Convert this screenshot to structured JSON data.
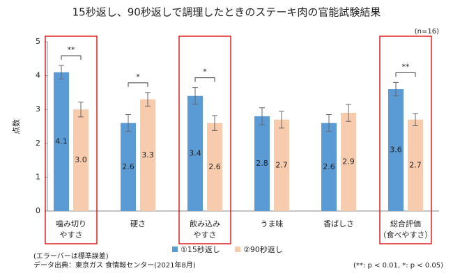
{
  "chart_data": {
    "type": "bar",
    "title": "15秒返し、90秒返しで調理したときのステーキ肉の官能試験結果",
    "note": "(n=16)",
    "y_label": "点数",
    "categories": [
      "噛み切り\nやすさ",
      "硬さ",
      "飲み込み\nやすさ",
      "うま味",
      "香ばしさ",
      "総合評価\n（食べやすさ）"
    ],
    "series": [
      {
        "name": "①15秒返し",
        "color": "#5b9bd5",
        "values": [
          4.1,
          2.6,
          3.4,
          2.8,
          2.6,
          3.6
        ],
        "value_labels": [
          "4.1",
          "2.6",
          "3.4",
          "2.8",
          "2.6",
          "3.6"
        ],
        "errors": [
          0.2,
          0.25,
          0.25,
          0.25,
          0.25,
          0.2
        ]
      },
      {
        "name": "②90秒返し",
        "color": "#f8cbad",
        "values": [
          3.0,
          3.3,
          2.6,
          2.7,
          2.9,
          2.7
        ],
        "value_labels": [
          "3.0",
          "3.3",
          "2.6",
          "2.7",
          "2.9",
          "2.7"
        ],
        "errors": [
          0.22,
          0.2,
          0.22,
          0.25,
          0.25,
          0.18
        ]
      }
    ],
    "significance": [
      "**",
      "*",
      "*",
      null,
      null,
      "**"
    ],
    "highlight": [
      true,
      false,
      true,
      false,
      false,
      true
    ],
    "highlight_color": "#e02020",
    "ylim": [
      0,
      5
    ],
    "yticks": [
      0,
      1,
      2,
      3,
      4,
      5
    ],
    "grid": false,
    "footnotes": [
      "(エラーバーは標準誤差)",
      "データ出典：東京ガス 食情報センター(2021年8月)"
    ],
    "significance_note": "(**: p < 0.01, *: p < 0.05)"
  }
}
